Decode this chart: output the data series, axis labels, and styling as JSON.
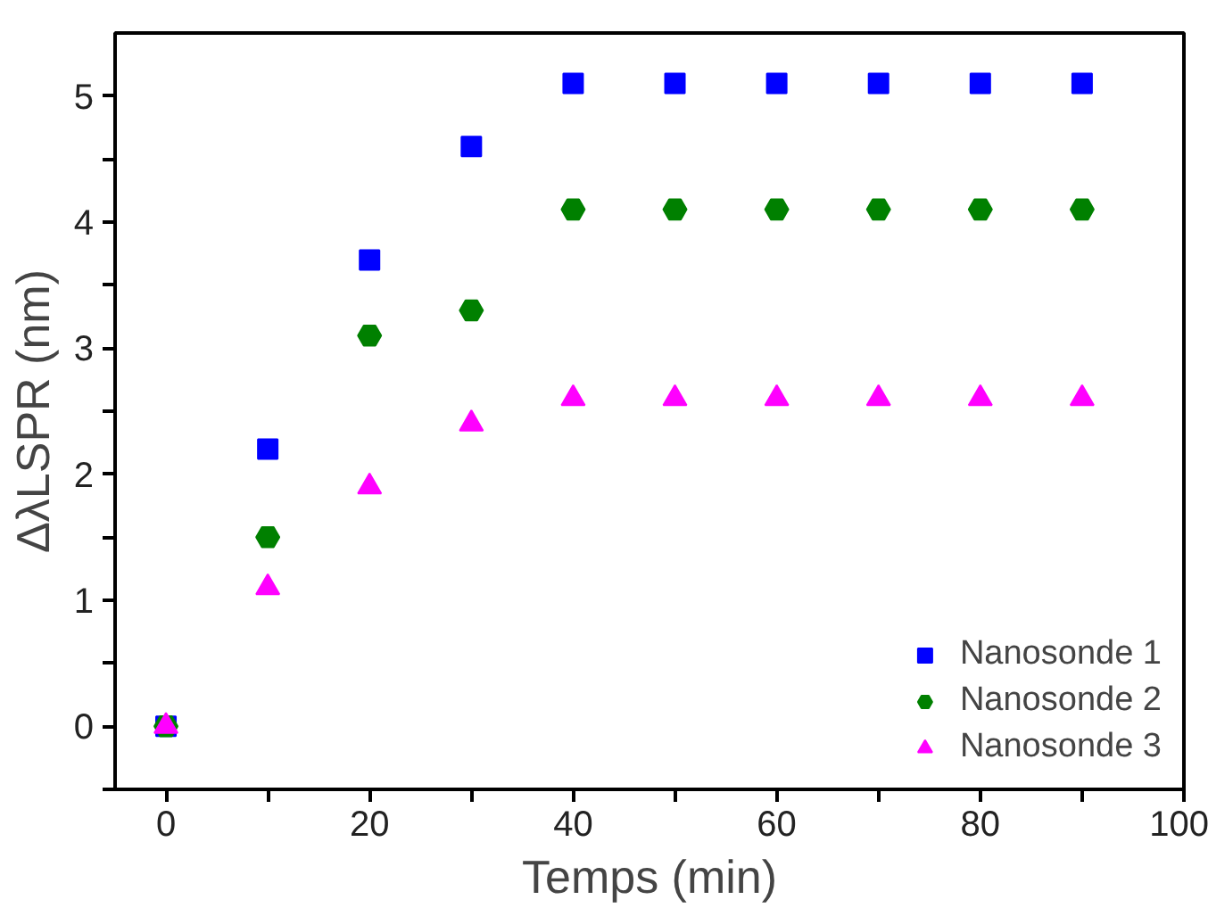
{
  "chart_data": {
    "type": "scatter",
    "xlabel": "Temps (min)",
    "ylabel": "ΔλLSPR (nm)",
    "x": [
      0,
      10,
      20,
      30,
      40,
      50,
      60,
      70,
      80,
      90
    ],
    "series": [
      {
        "name": "Nanosonde 1",
        "color": "#0000ff",
        "marker": "square",
        "values": [
          0,
          2.2,
          3.7,
          4.6,
          5.1,
          5.1,
          5.1,
          5.1,
          5.1,
          5.1
        ]
      },
      {
        "name": "Nanosonde 2",
        "color": "#008000",
        "marker": "circle",
        "values": [
          0,
          1.5,
          3.1,
          3.3,
          4.1,
          4.1,
          4.1,
          4.1,
          4.1,
          4.1
        ]
      },
      {
        "name": "Nanosonde 3",
        "color": "#ff00ff",
        "marker": "triangle",
        "values": [
          0,
          1.1,
          1.9,
          2.4,
          2.6,
          2.6,
          2.6,
          2.6,
          2.6,
          2.6
        ]
      }
    ],
    "xlim": [
      -5,
      100
    ],
    "ylim": [
      -0.5,
      5.5
    ],
    "xticks": [
      0,
      {
        "value": 10,
        "label": null
      },
      20,
      {
        "value": 30,
        "label": null
      },
      40,
      {
        "value": 50,
        "label": null
      },
      60,
      {
        "value": 70,
        "label": null
      },
      80,
      {
        "value": 90,
        "label": null
      },
      100
    ],
    "yticks": [
      {
        "value": -0.5,
        "label": null
      },
      0,
      {
        "value": 0.5,
        "label": null
      },
      1,
      {
        "value": 1.5,
        "label": null
      },
      2,
      {
        "value": 2.5,
        "label": null
      },
      3,
      {
        "value": 3.5,
        "label": null
      },
      4,
      {
        "value": 4.5,
        "label": null
      },
      5
    ],
    "grid": false,
    "legend": "bottom right"
  }
}
